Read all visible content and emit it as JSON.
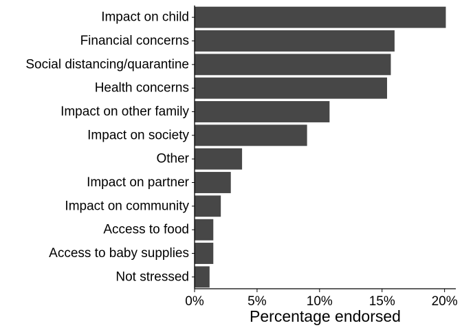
{
  "chart_data": {
    "type": "bar",
    "orientation": "horizontal",
    "categories": [
      "Impact on child",
      "Financial concerns",
      "Social distancing/quarantine",
      "Health concerns",
      "Impact on other family",
      "Impact on society",
      "Other",
      "Impact on partner",
      "Impact on community",
      "Access to food",
      "Access to baby supplies",
      "Not stressed"
    ],
    "values": [
      20.1,
      16.0,
      15.7,
      15.4,
      10.8,
      9.0,
      3.8,
      2.9,
      2.1,
      1.5,
      1.5,
      1.2
    ],
    "xlabel": "Percentage endorsed",
    "ylabel": "",
    "xlim": [
      0,
      20.9
    ],
    "x_ticks": [
      0,
      5,
      10,
      15,
      20
    ],
    "x_tick_labels": [
      "0%",
      "5%",
      "10%",
      "15%",
      "20%"
    ],
    "bar_color": "#474747",
    "grid": false
  }
}
